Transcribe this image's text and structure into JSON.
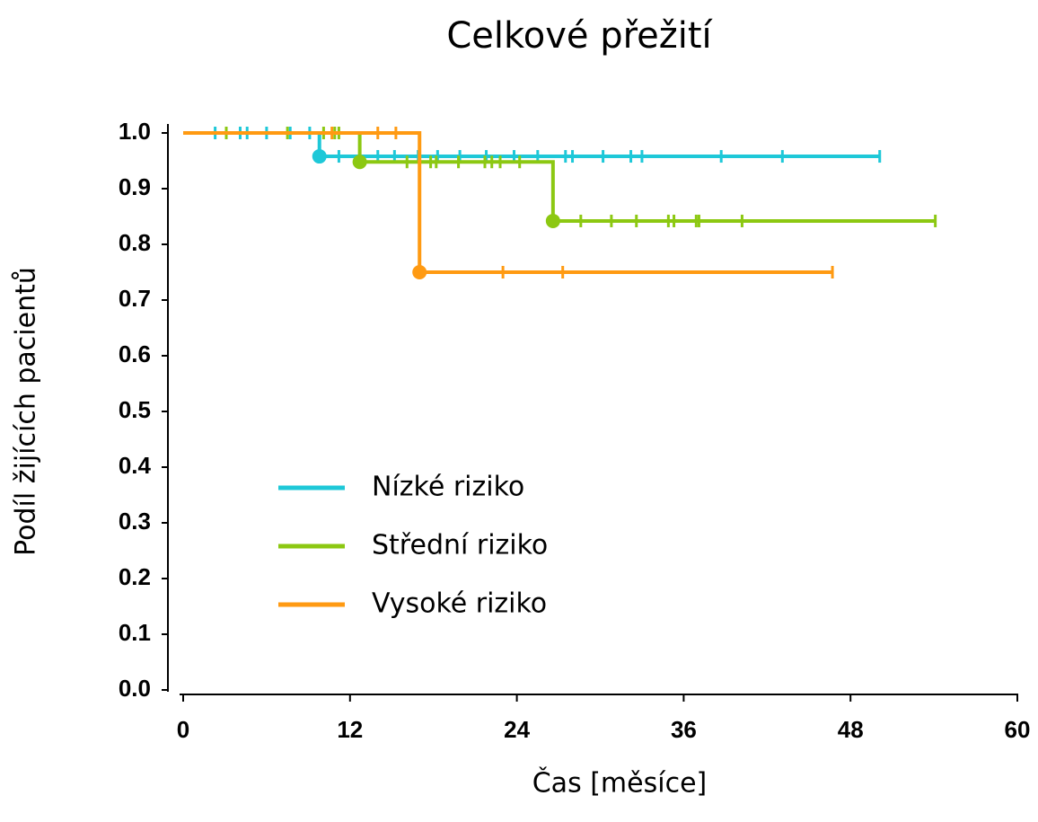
{
  "chart_data": {
    "type": "survival",
    "title": "Celkové přežití",
    "x_label": "Čas [měsíce]",
    "y_label": "Podíl žijících pacientů",
    "xlim": [
      0,
      60
    ],
    "xticks": [
      0,
      12,
      24,
      36,
      48,
      60
    ],
    "ylim": [
      0,
      1
    ],
    "yticks": [
      {
        "value": 0,
        "label": "0.0"
      },
      0.1,
      0.2,
      0.3,
      0.4,
      0.5,
      0.6,
      0.7,
      0.8,
      0.9,
      {
        "value": 1,
        "label": "1.0"
      }
    ],
    "legend": "lower-left",
    "series": [
      {
        "name": "Nízké riziko",
        "color": "#1ec8d8",
        "x": [
          0,
          9.8,
          50.1
        ],
        "values": [
          1.0,
          0.958,
          0.958
        ],
        "censored_x": [
          2.3,
          4.1,
          4.6,
          6.0,
          7.7,
          9.1,
          11.2,
          14.0,
          15.2,
          16.9,
          18.3,
          19.9,
          21.8,
          23.8,
          25.5,
          27.5,
          28.0,
          30.2,
          32.2,
          33.0,
          38.7,
          43.1,
          50.1
        ],
        "censored_values": [
          1.0,
          1.0,
          1.0,
          1.0,
          1.0,
          1.0,
          0.958,
          0.958,
          0.958,
          0.958,
          0.958,
          0.958,
          0.958,
          0.958,
          0.958,
          0.958,
          0.958,
          0.958,
          0.958,
          0.958,
          0.958,
          0.958,
          0.958
        ]
      },
      {
        "name": "Střední riziko",
        "color": "#8cc812",
        "x": [
          0,
          12.7,
          26.6,
          54.1
        ],
        "values": [
          1.0,
          0.948,
          0.842,
          0.842
        ],
        "censored_x": [
          3.1,
          7.5,
          10.1,
          10.9,
          11.2,
          16.1,
          17.8,
          18.2,
          19.8,
          21.7,
          22.2,
          22.8,
          24.2,
          28.6,
          30.8,
          32.6,
          34.9,
          35.3,
          36.9,
          37.1,
          40.2,
          54.1
        ],
        "censored_values": [
          1.0,
          1.0,
          1.0,
          1.0,
          1.0,
          0.948,
          0.948,
          0.948,
          0.948,
          0.948,
          0.948,
          0.948,
          0.948,
          0.842,
          0.842,
          0.842,
          0.842,
          0.842,
          0.842,
          0.842,
          0.842,
          0.842
        ]
      },
      {
        "name": "Vysoké riziko",
        "color": "#ff9a12",
        "x": [
          0,
          17.0,
          46.7
        ],
        "values": [
          1.0,
          0.75,
          0.75
        ],
        "censored_x": [
          10.7,
          14.0,
          15.3,
          23.0,
          27.3,
          46.7
        ],
        "censored_values": [
          1.0,
          1.0,
          1.0,
          0.75,
          0.75,
          0.75
        ]
      }
    ]
  }
}
